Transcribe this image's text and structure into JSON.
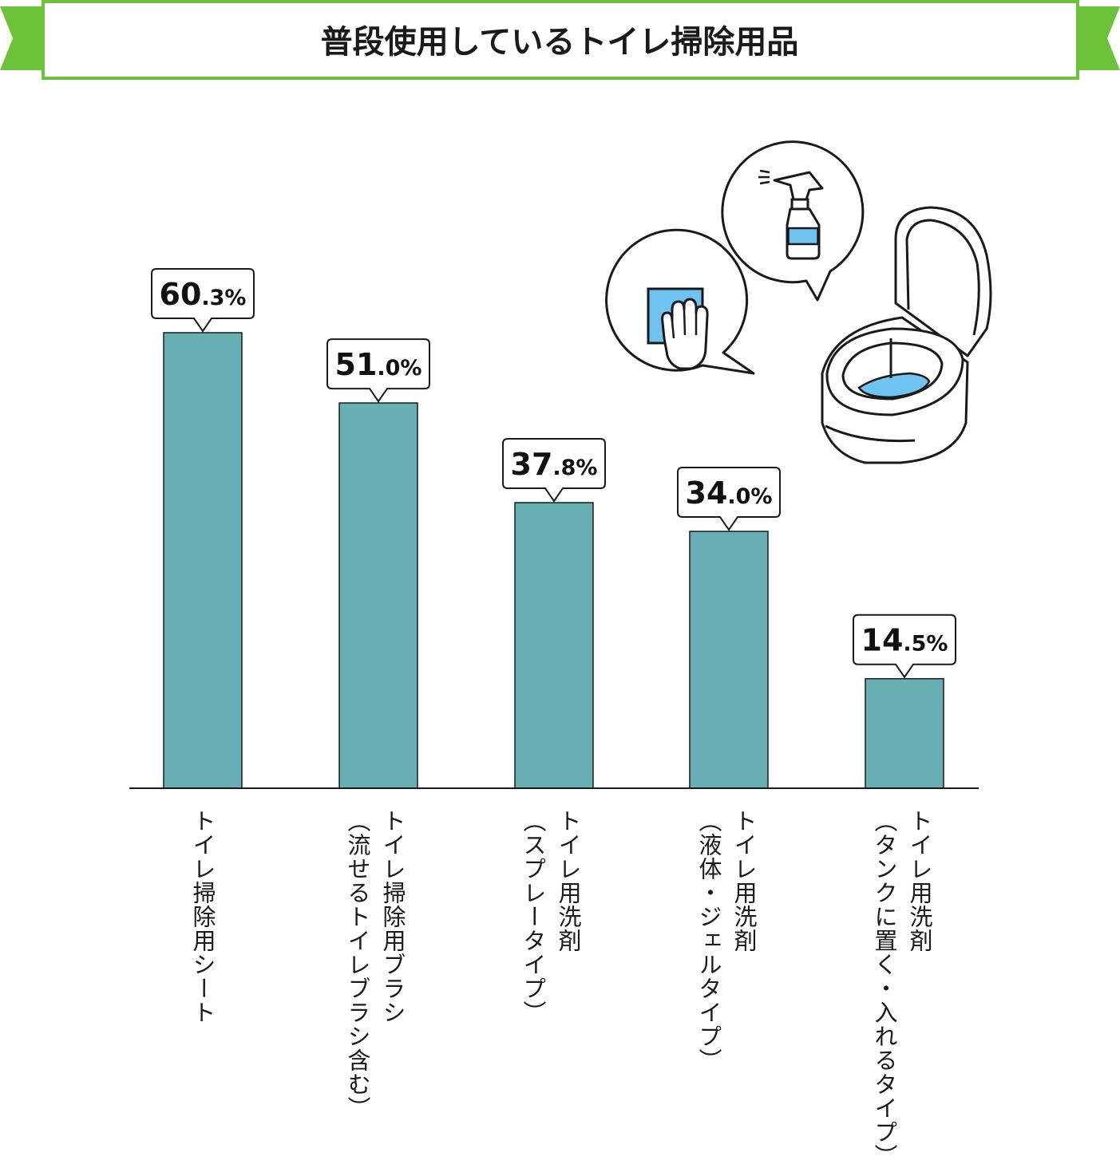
{
  "title": "普段使用しているトイレ掃除用品",
  "colors": {
    "bar": "#68afb4",
    "accent_green": "#6cc33a",
    "icon_blue": "#6ec3f0"
  },
  "icons": [
    "cloth-glove-icon",
    "spray-bottle-icon",
    "toilet-icon"
  ],
  "chart_data": {
    "type": "bar",
    "title": "普段使用しているトイレ掃除用品",
    "unit": "%",
    "ylim": [
      0,
      60.3
    ],
    "categories": [
      [
        "トイレ掃除用シート"
      ],
      [
        "トイレ掃除用ブラシ",
        "（流せるトイレブラシ含む）"
      ],
      [
        "トイレ用洗剤",
        "（スプレータイプ）"
      ],
      [
        "トイレ用洗剤",
        "（液体・ジェルタイプ）"
      ],
      [
        "トイレ用洗剤",
        "（タンクに置く・入れるタイプ）"
      ]
    ],
    "values": [
      60.3,
      51.0,
      37.8,
      34.0,
      14.5
    ],
    "value_labels": [
      {
        "int": "60",
        "dec": ".3%"
      },
      {
        "int": "51",
        "dec": ".0%"
      },
      {
        "int": "37",
        "dec": ".8%"
      },
      {
        "int": "34",
        "dec": ".0%"
      },
      {
        "int": "14",
        "dec": ".5%"
      }
    ],
    "xlabel": "",
    "ylabel": "",
    "grid": false,
    "legend": "none"
  }
}
